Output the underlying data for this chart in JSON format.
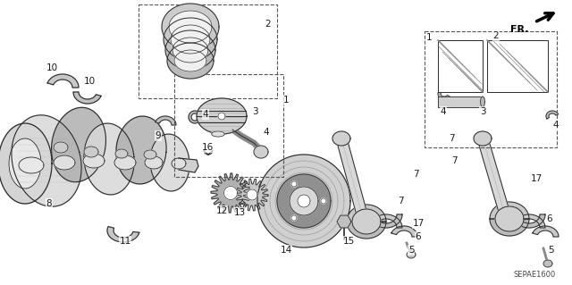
{
  "bg_color": "#ffffff",
  "part_code": "SEPAE1600",
  "fr_label": "FR.",
  "line_color": "#2a2a2a",
  "gray_fill": "#d8d8d8",
  "gray_mid": "#b0b0b0",
  "gray_dark": "#888888",
  "figsize": [
    6.4,
    3.19
  ],
  "dpi": 100
}
